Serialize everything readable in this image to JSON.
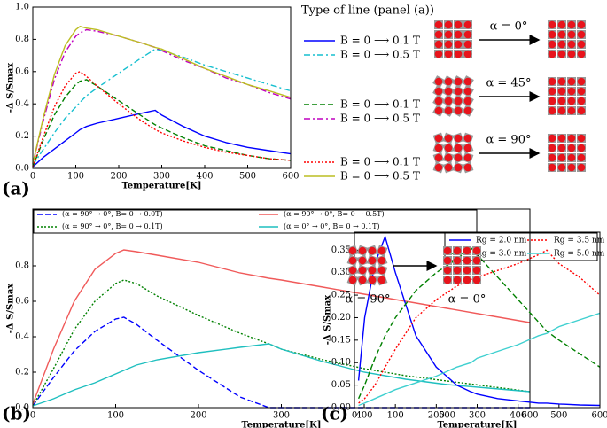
{
  "chart_data": [
    {
      "type": "line",
      "panel_label": "(a)",
      "xlabel": "Temperature[K]",
      "ylabel": "-Δ S/Smax",
      "legend_title": "Type of line (panel (a))",
      "annotations": [
        "α = 0°",
        "α = 45°",
        "α = 90°"
      ],
      "x": [
        0,
        25,
        50,
        75,
        100,
        110,
        125,
        150,
        200,
        250,
        285,
        300,
        350,
        400,
        450,
        500,
        550,
        600
      ],
      "xlim": [
        0,
        600
      ],
      "xticks": [
        0,
        100,
        200,
        300,
        400,
        500,
        600
      ],
      "ylim": [
        0,
        1
      ],
      "yticks": [
        {
          "value": 0,
          "label": "0.0"
        },
        0.2,
        0.4,
        0.6,
        0.8,
        {
          "value": 1,
          "label": "1.0"
        }
      ],
      "series": [
        {
          "name": "B = 0 ⟶ 0.1 T",
          "color": "#0000ff",
          "dash": "solid",
          "values": [
            0.01,
            0.07,
            0.12,
            0.17,
            0.22,
            0.24,
            0.26,
            0.28,
            0.31,
            0.34,
            0.36,
            0.33,
            0.26,
            0.2,
            0.16,
            0.13,
            0.11,
            0.09
          ]
        },
        {
          "name": "B = 0 ⟶ 0.5 T",
          "color": "#17bfcf",
          "dash": "dashdot",
          "values": [
            0.02,
            0.12,
            0.22,
            0.31,
            0.38,
            0.41,
            0.45,
            0.5,
            0.59,
            0.68,
            0.74,
            0.73,
            0.69,
            0.64,
            0.6,
            0.56,
            0.52,
            0.48
          ]
        },
        {
          "name": "B = 0 ⟶ 0.1 T",
          "color": "#008000",
          "dash": "dashed",
          "values": [
            0.01,
            0.18,
            0.33,
            0.44,
            0.52,
            0.54,
            0.55,
            0.51,
            0.42,
            0.33,
            0.27,
            0.25,
            0.19,
            0.14,
            0.11,
            0.08,
            0.06,
            0.05
          ]
        },
        {
          "name": "B = 0 ⟶ 0.5 T",
          "color": "#bf00bf",
          "dash": "dashdot",
          "values": [
            0.03,
            0.3,
            0.55,
            0.72,
            0.82,
            0.84,
            0.86,
            0.85,
            0.82,
            0.78,
            0.75,
            0.73,
            0.67,
            0.62,
            0.56,
            0.52,
            0.47,
            0.43
          ]
        },
        {
          "name": "B = 0 ⟶ 0.1 T",
          "color": "#ff0000",
          "dash": "dotted",
          "values": [
            0.01,
            0.2,
            0.38,
            0.51,
            0.59,
            0.6,
            0.57,
            0.51,
            0.4,
            0.3,
            0.24,
            0.22,
            0.17,
            0.13,
            0.1,
            0.08,
            0.06,
            0.05
          ]
        },
        {
          "name": "B = 0 ⟶ 0.5 T",
          "color": "#bcbd22",
          "dash": "solid",
          "values": [
            0.03,
            0.32,
            0.58,
            0.76,
            0.86,
            0.88,
            0.87,
            0.86,
            0.82,
            0.78,
            0.75,
            0.74,
            0.68,
            0.62,
            0.57,
            0.52,
            0.48,
            0.44
          ]
        }
      ]
    },
    {
      "type": "line",
      "panel_label": "(b)",
      "xlabel": "Temperature[K]",
      "ylabel": "-Δ S/Smax",
      "annotations": [
        "α = 90°",
        "α = 0°"
      ],
      "x": [
        0,
        25,
        50,
        75,
        100,
        110,
        125,
        150,
        200,
        250,
        285,
        300,
        350,
        400,
        450,
        500,
        550,
        600
      ],
      "xlim": [
        0,
        600
      ],
      "xticks": [
        0,
        100,
        200,
        300,
        400,
        500,
        600
      ],
      "ylim": [
        0,
        1.12
      ],
      "yticks": [
        {
          "value": 0,
          "label": "0.0"
        },
        0.2,
        0.4,
        0.6,
        0.8
      ],
      "series": [
        {
          "name": "(α = 90° → 0°, B= 0 → 0.0T)",
          "color": "#0000ff",
          "dash": "dashed",
          "values": [
            0.01,
            0.17,
            0.32,
            0.43,
            0.5,
            0.51,
            0.47,
            0.38,
            0.21,
            0.06,
            0,
            0,
            0,
            0,
            0,
            0,
            0,
            0
          ]
        },
        {
          "name": "(α = 90° → 0°, B= 0 → 0.1T)",
          "color": "#008000",
          "dash": "dotted",
          "values": [
            0.01,
            0.22,
            0.44,
            0.6,
            0.7,
            0.72,
            0.7,
            0.63,
            0.52,
            0.42,
            0.36,
            0.33,
            0.27,
            0.22,
            0.18,
            0.15,
            0.12,
            0.09
          ]
        },
        {
          "name": "(α = 90° → 0°, B= 0 → 0.5T)",
          "color": "#f05a5a",
          "dash": "solid",
          "values": [
            0.02,
            0.33,
            0.6,
            0.78,
            0.87,
            0.89,
            0.88,
            0.86,
            0.82,
            0.76,
            0.73,
            0.72,
            0.68,
            0.64,
            0.6,
            0.56,
            0.52,
            0.48
          ]
        },
        {
          "name": "(α = 0° → 0°, B= 0 → 0.1T)",
          "color": "#1fbfbf",
          "dash": "solid",
          "values": [
            0.01,
            0.05,
            0.1,
            0.14,
            0.19,
            0.21,
            0.24,
            0.27,
            0.31,
            0.34,
            0.36,
            0.33,
            0.26,
            0.2,
            0.16,
            0.13,
            0.11,
            0.09
          ]
        }
      ]
    },
    {
      "type": "line",
      "panel_label": "(c)",
      "xlabel": "Temperature[K]",
      "ylabel": "-Δ S/Smax",
      "x": [
        10,
        25,
        50,
        75,
        100,
        150,
        200,
        250,
        285,
        300,
        350,
        400,
        450,
        470,
        500,
        550,
        600
      ],
      "xlim": [
        0,
        600
      ],
      "xticks": [
        0,
        100,
        200,
        300,
        400,
        500,
        600
      ],
      "ylim": [
        0,
        0.39
      ],
      "yticks": [
        {
          "value": 0,
          "label": "0.00"
        },
        0.05,
        {
          "value": 0.1,
          "label": "0.10"
        },
        0.15,
        {
          "value": 0.2,
          "label": "0.20"
        },
        0.25,
        {
          "value": 0.3,
          "label": "0.30"
        },
        0.35
      ],
      "series": [
        {
          "name": "Rg = 2.0 nm",
          "color": "#0000ff",
          "dash": "solid",
          "values": [
            0.06,
            0.2,
            0.32,
            0.38,
            0.3,
            0.16,
            0.09,
            0.05,
            0.035,
            0.03,
            0.02,
            0.015,
            0.01,
            0.01,
            0.008,
            0.006,
            0.005
          ]
        },
        {
          "name": "Rg = 3.0 nm",
          "color": "#008000",
          "dash": "dashed",
          "values": [
            0.02,
            0.05,
            0.11,
            0.16,
            0.2,
            0.26,
            0.3,
            0.33,
            0.355,
            0.34,
            0.29,
            0.24,
            0.19,
            0.17,
            0.15,
            0.12,
            0.09
          ]
        },
        {
          "name": "Rg = 3.5 nm",
          "color": "#ff0000",
          "dash": "dotted",
          "values": [
            0.01,
            0.02,
            0.05,
            0.09,
            0.13,
            0.2,
            0.24,
            0.27,
            0.285,
            0.29,
            0.305,
            0.32,
            0.34,
            0.35,
            0.32,
            0.29,
            0.25
          ]
        },
        {
          "name": "Rg = 5.0 nm",
          "color": "#40d0d0",
          "dash": "solid",
          "values": [
            0.005,
            0.01,
            0.02,
            0.03,
            0.04,
            0.055,
            0.07,
            0.09,
            0.1,
            0.11,
            0.125,
            0.14,
            0.16,
            0.165,
            0.18,
            0.195,
            0.21
          ]
        }
      ]
    }
  ]
}
